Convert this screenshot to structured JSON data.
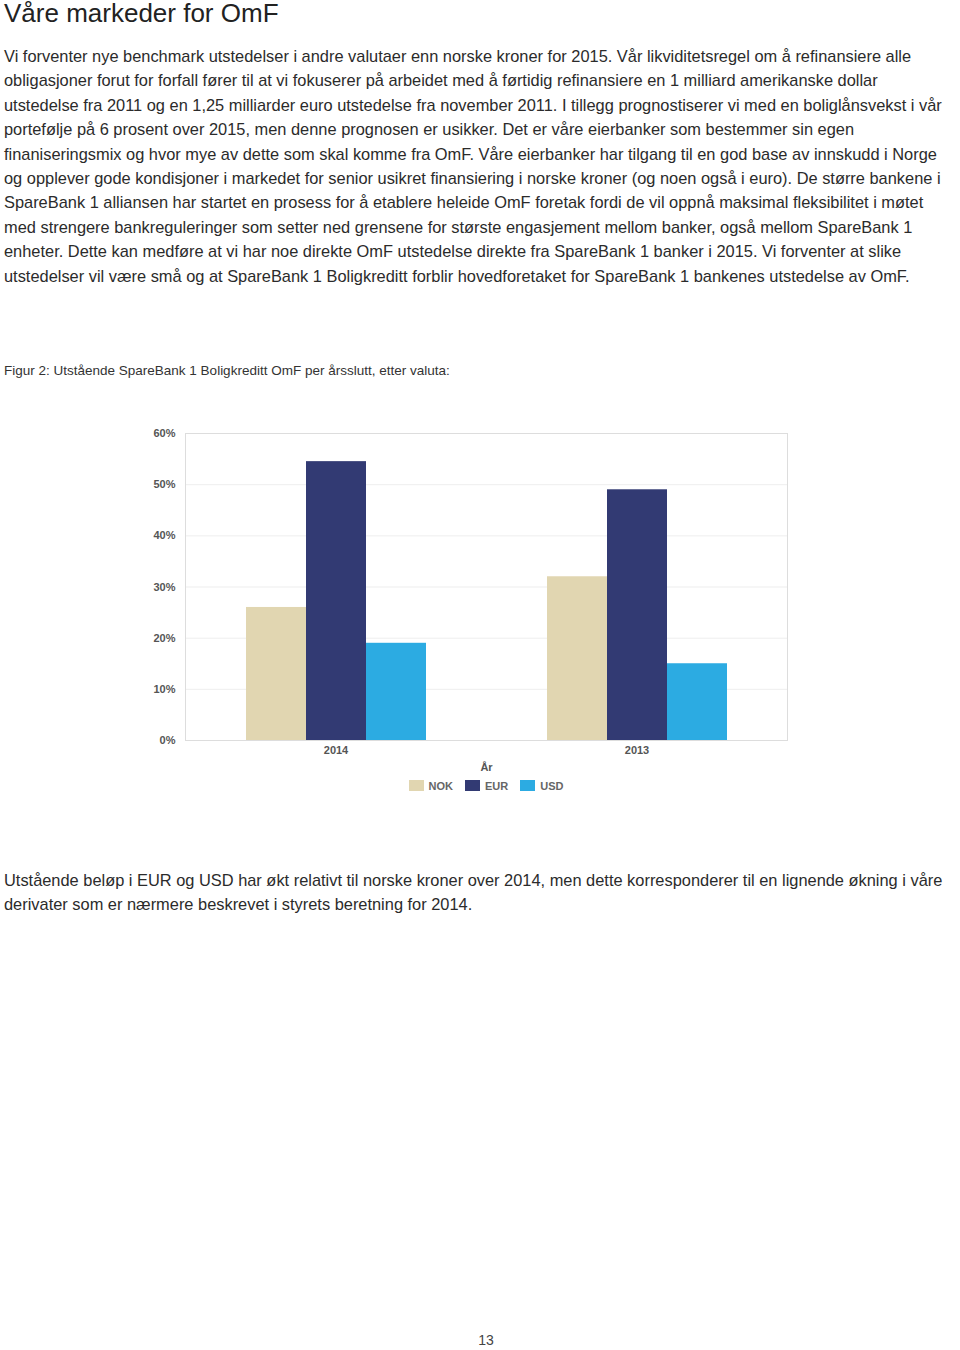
{
  "heading": "Våre markeder for OmF",
  "paragraphs": [
    "Vi forventer nye benchmark utstedelser i andre valutaer enn norske kroner for 2015. Vår likviditetsregel om å refinansiere alle obligasjoner forut for forfall fører til at vi fokuserer på arbeidet med å førtidig refinansiere en 1 milliard amerikanske dollar utstedelse fra 2011 og en 1,25 milliarder euro utstedelse fra november 2011. I tillegg prognostiserer vi med en boliglånsvekst i vår portefølje på 6 prosent over 2015, men denne prognosen er usikker. Det er våre eierbanker som bestemmer sin egen finaniseringsmix og hvor mye av dette som skal komme fra OmF. Våre eierbanker har tilgang til en god base av innskudd i Norge og opplever gode kondisjoner i markedet for senior usikret finansiering i norske kroner (og noen også i euro). De større bankene i SpareBank 1 alliansen har startet en prosess for å etablere heleide OmF foretak fordi de vil oppnå maksimal fleksibilitet i møtet med strengere bankreguleringer som setter ned grensene for største engasjement mellom banker, også mellom SpareBank 1 enheter. Dette kan medføre at vi har noe direkte OmF utstedelse direkte fra SpareBank 1 banker i 2015. Vi forventer at slike utstedelser vil være små og at SpareBank 1 Boligkreditt forblir hovedforetaket for SpareBank 1 bankenes utstedelse av OmF."
  ],
  "chart_data": {
    "type": "bar",
    "title": "Figur 2: Utstående SpareBank 1 Boligkreditt OmF per årsslutt, etter valuta:",
    "xlabel": "År",
    "categories": [
      "2014",
      "2013"
    ],
    "series": [
      {
        "name": "NOK",
        "color": "#e1d6b1",
        "values": [
          26,
          32
        ]
      },
      {
        "name": "EUR",
        "color": "#323a73",
        "values": [
          54.5,
          49
        ]
      },
      {
        "name": "USD",
        "color": "#2cabe2",
        "values": [
          19,
          15
        ]
      }
    ],
    "ylim": [
      0,
      60
    ],
    "yticks": [
      {
        "value": 0,
        "label": "0%"
      },
      {
        "value": 10,
        "label": "10%"
      },
      {
        "value": 20,
        "label": "20%"
      },
      {
        "value": 30,
        "label": "30%"
      },
      {
        "value": 40,
        "label": "40%"
      },
      {
        "value": 50,
        "label": "50%"
      },
      {
        "value": 60,
        "label": "60%"
      }
    ],
    "grid": true,
    "legend": "bottom"
  },
  "closing": "Utstående beløp i EUR og USD har økt relativt til norske kroner over 2014, men dette korresponderer til en lignende økning i våre derivater som er nærmere beskrevet i styrets beretning for 2014.",
  "page_number": "13"
}
